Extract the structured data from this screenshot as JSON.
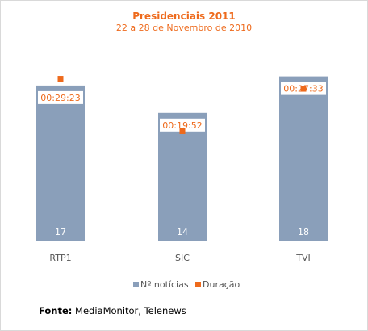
{
  "chart_data": {
    "type": "bar",
    "title": "Presidenciais 2011",
    "subtitle": "22 a 28 de Novembro de 2010",
    "categories": [
      "RTP1",
      "SIC",
      "TVI"
    ],
    "series": [
      {
        "name": "Nº notícias",
        "values": [
          17,
          14,
          18
        ],
        "color": "#8a9fba"
      },
      {
        "name": "Duração",
        "values": [
          "00:29:23",
          "00:19:52",
          "00:27:33"
        ],
        "color": "#ee6a1c"
      }
    ],
    "ylim": [
      0,
      20
    ],
    "legend": "bottom-center",
    "grid": false
  },
  "source": {
    "label": "Fonte:",
    "text": " MediaMonitor, Telenews"
  },
  "colors": {
    "title": "#ee6a1c",
    "bar": "#8a9fba",
    "marker": "#ee6a1c",
    "axis": "#555555"
  }
}
